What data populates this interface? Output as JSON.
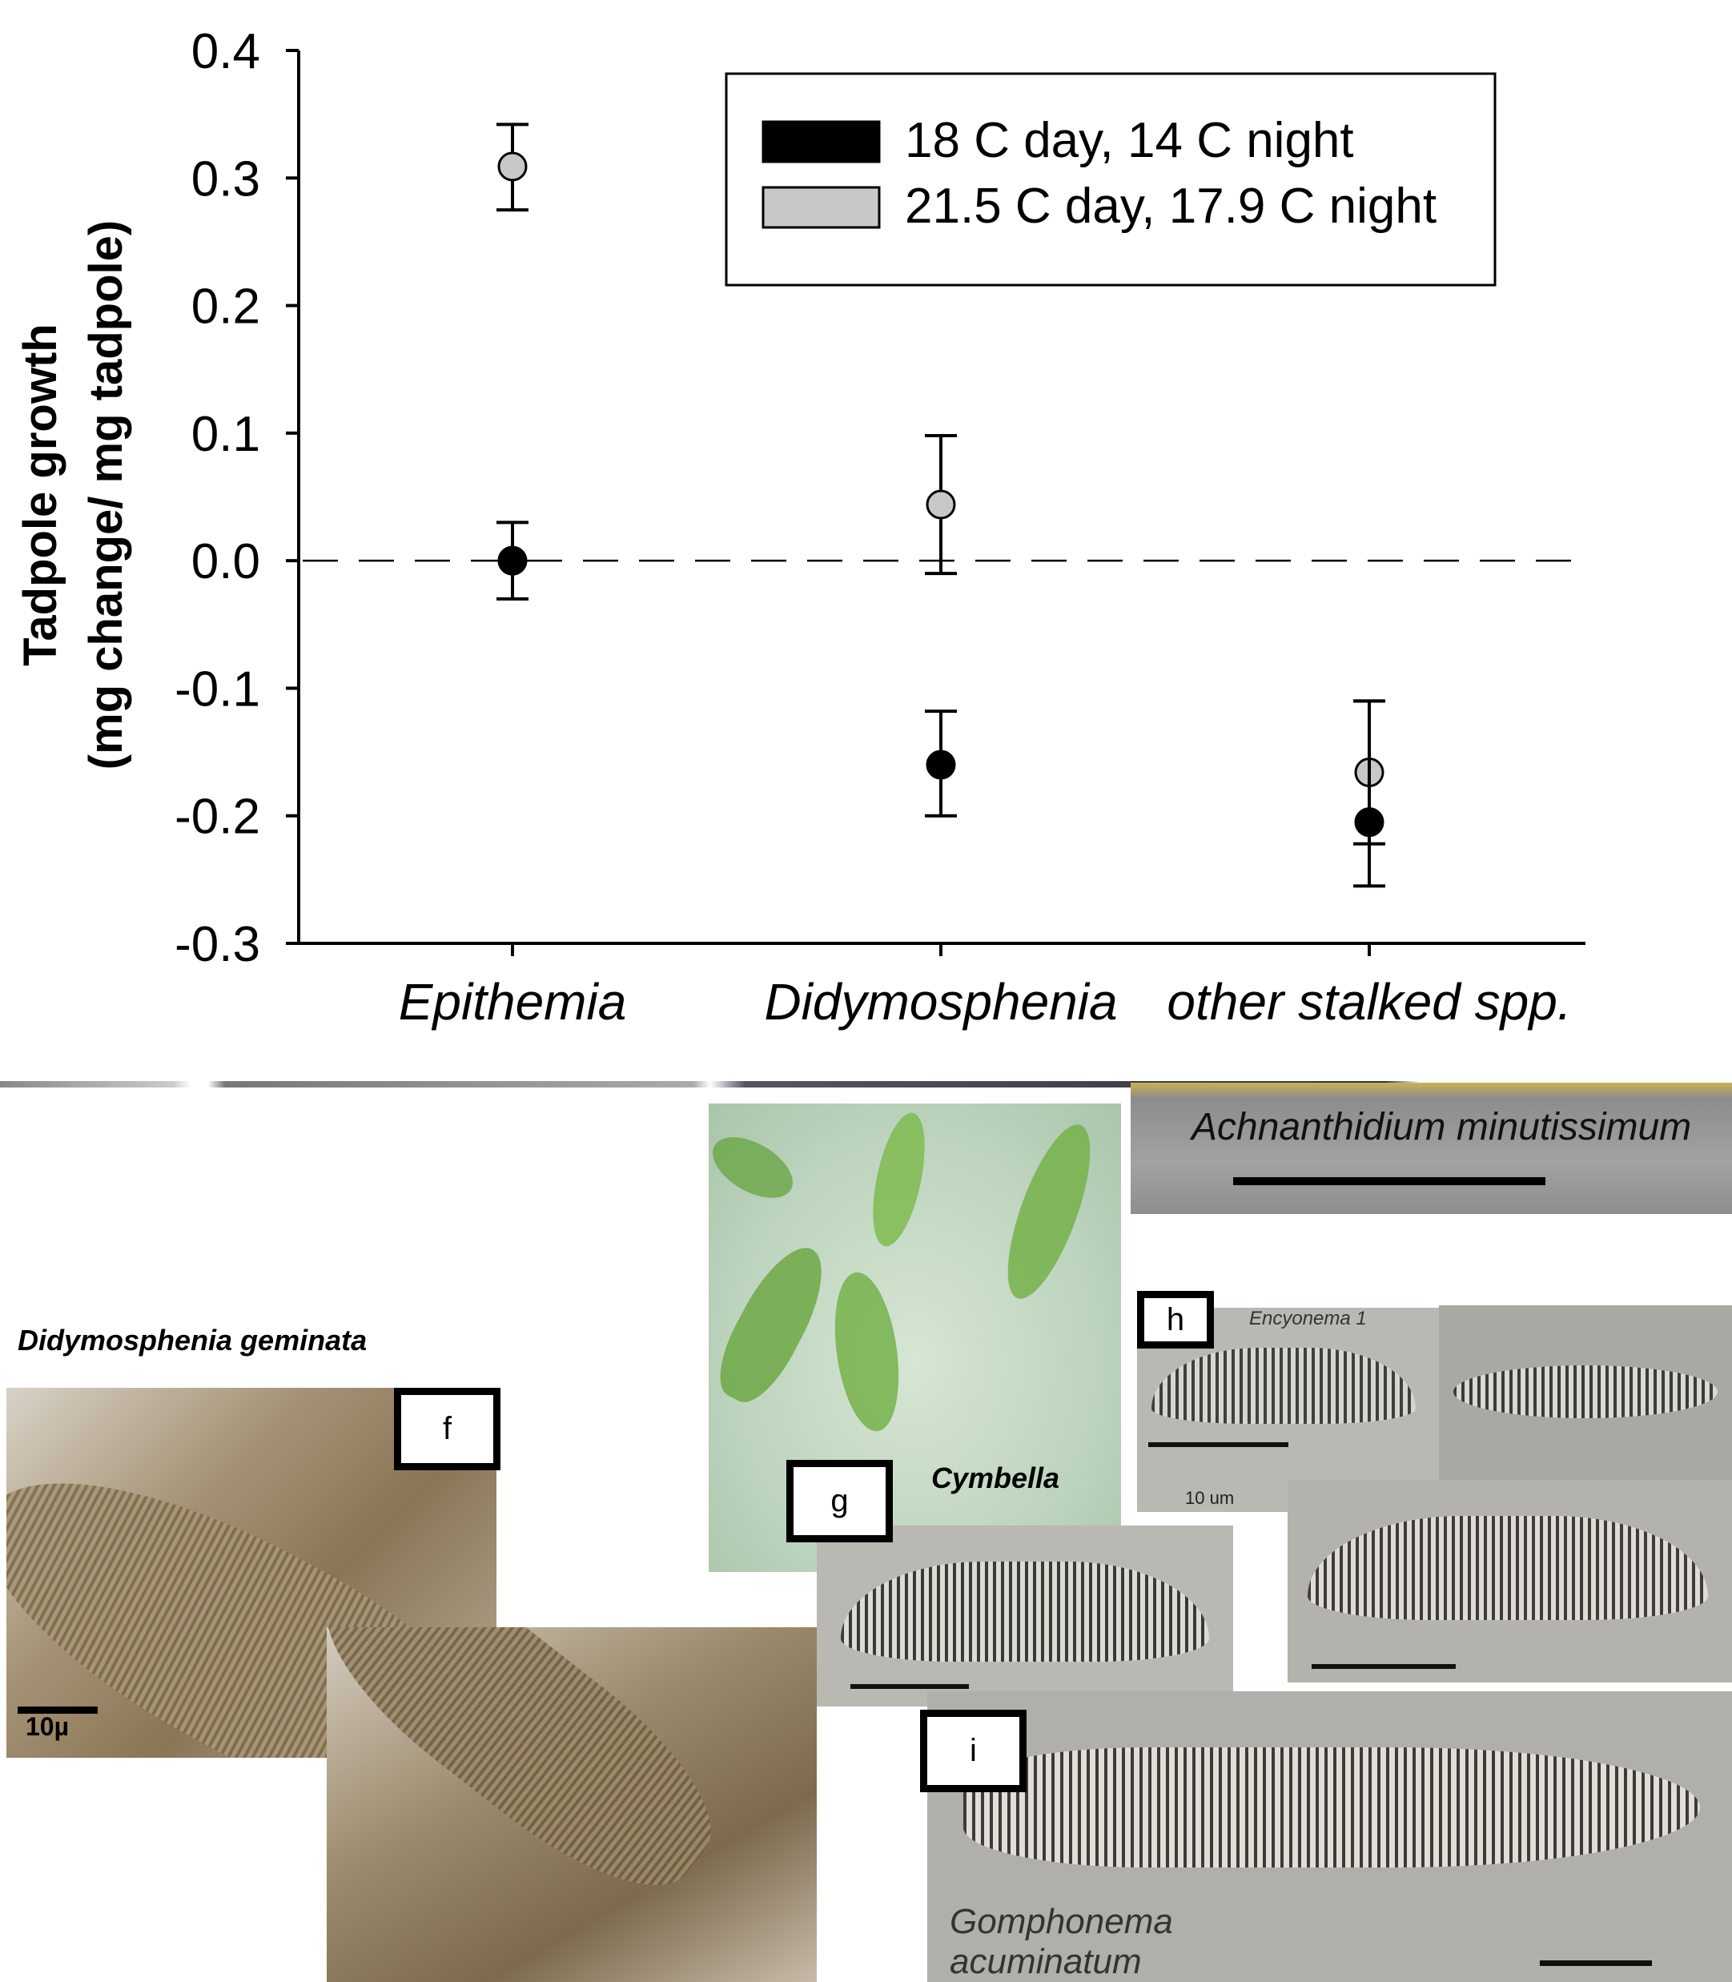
{
  "chart_data": {
    "type": "scatter",
    "title": "",
    "xlabel": "",
    "ylabel": [
      "Tadpole growth",
      "(mg change/ mg tadpole)"
    ],
    "ylim": [
      -0.3,
      0.4
    ],
    "yticks": [
      "0.4",
      "0.3",
      "0.2",
      "0.1",
      "0.0",
      "-0.1",
      "-0.2",
      "-0.3"
    ],
    "ytick_values": [
      0.4,
      0.3,
      0.2,
      0.1,
      0.0,
      -0.1,
      -0.2,
      -0.3
    ],
    "categories": [
      "Epithemia",
      "Didymosphenia",
      "other stalked spp."
    ],
    "reference_line": {
      "y": 0.0,
      "style": "dashed"
    },
    "legend_position": "top-right",
    "series": [
      {
        "name": "18 C day, 14 C night",
        "color": "#000000",
        "values": [
          0.0,
          -0.16,
          -0.205
        ],
        "err_low": [
          -0.03,
          -0.2,
          -0.255
        ],
        "err_high": [
          0.03,
          -0.118,
          -0.11
        ]
      },
      {
        "name": "21.5 C day, 17.9 C night",
        "color": "#c8c8c8",
        "values": [
          0.309,
          0.044,
          -0.166
        ],
        "err_low": [
          0.275,
          -0.01,
          -0.222
        ],
        "err_high": [
          0.342,
          0.098,
          -0.11
        ]
      }
    ],
    "grid": false
  },
  "photos": {
    "achnanthidium_label": "Achnanthidium minutissimum",
    "didymosphenia_label": "Didymosphenia geminata",
    "didymo_scale": "10µ",
    "cymbella_label": "Cymbella",
    "encyonema_label": "Encyonema 1",
    "encyonema_scale": "10 um",
    "gomphonema_label_1": "Gomphonema",
    "gomphonema_label_2": "acuminatum",
    "panel_f": "f",
    "panel_g": "g",
    "panel_h": "h",
    "panel_i": "i"
  },
  "colors": {
    "series1": "#000000",
    "series2": "#c8c8c8",
    "photo_brown": "#9a8668",
    "photo_green": "#c9dccd",
    "photo_gray": "#a9a9a4"
  }
}
